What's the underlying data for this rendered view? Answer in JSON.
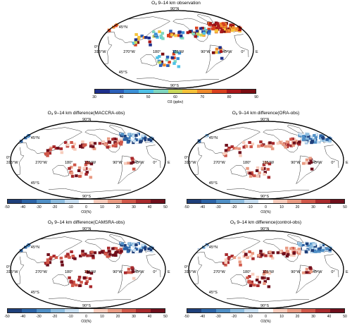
{
  "panels": {
    "obs": {
      "title": "O3 9–14 km observation",
      "title_main": "O",
      "title_sub": "3",
      "title_rest": " 9–14 km observation",
      "colorbar_ticks": [
        "30",
        "40",
        "50",
        "60",
        "70",
        "80",
        "90"
      ],
      "colorbar_unit": "O3 (ppbv)",
      "colorbar_colors": [
        "#1d2f8c",
        "#2c5fb8",
        "#3b8fd6",
        "#4fc1e6",
        "#7fd6c0",
        "#c8d95a",
        "#f5c23a",
        "#f08a2c",
        "#d9401e",
        "#a8161a",
        "#7a0c12"
      ]
    },
    "maccra": {
      "title_main": "O",
      "title_sub": "3",
      "title_rest": " 9–14 km difference(MACCRA-obs)",
      "colorbar_ticks": [
        "-50",
        "-40",
        "-30",
        "-20",
        "-10",
        "0",
        "10",
        "20",
        "30",
        "40",
        "50"
      ],
      "colorbar_unit": "O3(%)"
    },
    "ora": {
      "title_main": "O",
      "title_sub": "3",
      "title_rest": " 9–14 km difference(ORA-obs)",
      "colorbar_ticks": [
        "-50",
        "-40",
        "-30",
        "-20",
        "-10",
        "0",
        "10",
        "20",
        "30",
        "40",
        "50"
      ],
      "colorbar_unit": "O3(%)"
    },
    "camsra": {
      "title_main": "O",
      "title_sub": "3",
      "title_rest": " 9–14 km difference(CAMSRA-obs)",
      "colorbar_ticks": [
        "-50",
        "-40",
        "-30",
        "-20",
        "-10",
        "0",
        "10",
        "20",
        "30",
        "40",
        "50"
      ],
      "colorbar_unit": "O3(%)"
    },
    "control": {
      "title_main": "O",
      "title_sub": "3",
      "title_rest": " 9–14 km difference(control-obs)",
      "colorbar_ticks": [
        "-50",
        "-40",
        "-30",
        "-20",
        "-10",
        "0",
        "10",
        "20",
        "30",
        "40",
        "50"
      ],
      "colorbar_unit": "O3(%)"
    }
  },
  "map_labels": {
    "lat_90n": "90°N",
    "lat_45n": "45°N",
    "lat_0": "0°",
    "lat_45s": "45°S",
    "lat_90s": "90°S",
    "lon_315w": "315°W",
    "lon_270w": "270°W",
    "lon_180": "180°",
    "lon_135w": "135°W",
    "lon_90w": "90°W",
    "lon_45w": "45°W",
    "lon_0": "0°",
    "lon_e": "E"
  },
  "diff_colors": [
    "#1e3f7a",
    "#2b63a6",
    "#4f8fc6",
    "#8bbbde",
    "#c7def0",
    "#ffffff",
    "#f7ccbc",
    "#e99a82",
    "#d0584a",
    "#a82a2d",
    "#6f0f1c"
  ]
}
